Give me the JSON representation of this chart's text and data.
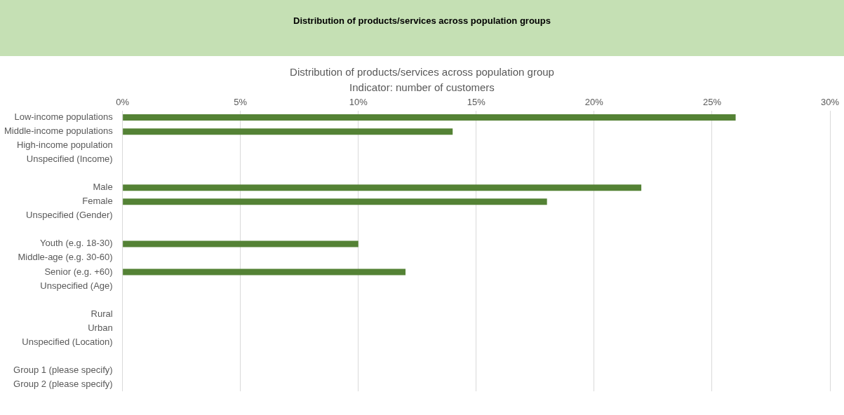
{
  "chart_data": {
    "type": "bar",
    "orientation": "horizontal",
    "title": "Distribution of products/services across population groups",
    "subtitle": "Distribution of products/services across population group\nIndicator: number of customers",
    "categories": [
      "Low-income populations",
      "Middle-income populations",
      "High-income population",
      "Unspecified (Income)",
      null,
      "Male",
      "Female",
      "Unspecified (Gender)",
      null,
      "Youth (e.g. 18-30)",
      "Middle-age (e.g. 30-60)",
      "Senior (e.g. +60)",
      "Unspecified (Age)",
      null,
      "Rural",
      "Urban",
      "Unspecified (Location)",
      null,
      "Group 1 (please specify)",
      "Group 2 (please specify)"
    ],
    "values": [
      26,
      14,
      0,
      0,
      null,
      22,
      18,
      0,
      null,
      10,
      0,
      12,
      0,
      null,
      0,
      0,
      0,
      null,
      0,
      0
    ],
    "color": "#548235",
    "xlim": [
      0,
      30
    ],
    "xticks": [
      {
        "value": 0,
        "label": "0%"
      },
      {
        "value": 5,
        "label": "5%"
      },
      {
        "value": 10,
        "label": "10%"
      },
      {
        "value": 15,
        "label": "15%"
      },
      {
        "value": 20,
        "label": "20%"
      },
      {
        "value": 25,
        "label": "25%"
      },
      {
        "value": 30,
        "label": "30%"
      }
    ],
    "grid": "x",
    "legend": false
  }
}
